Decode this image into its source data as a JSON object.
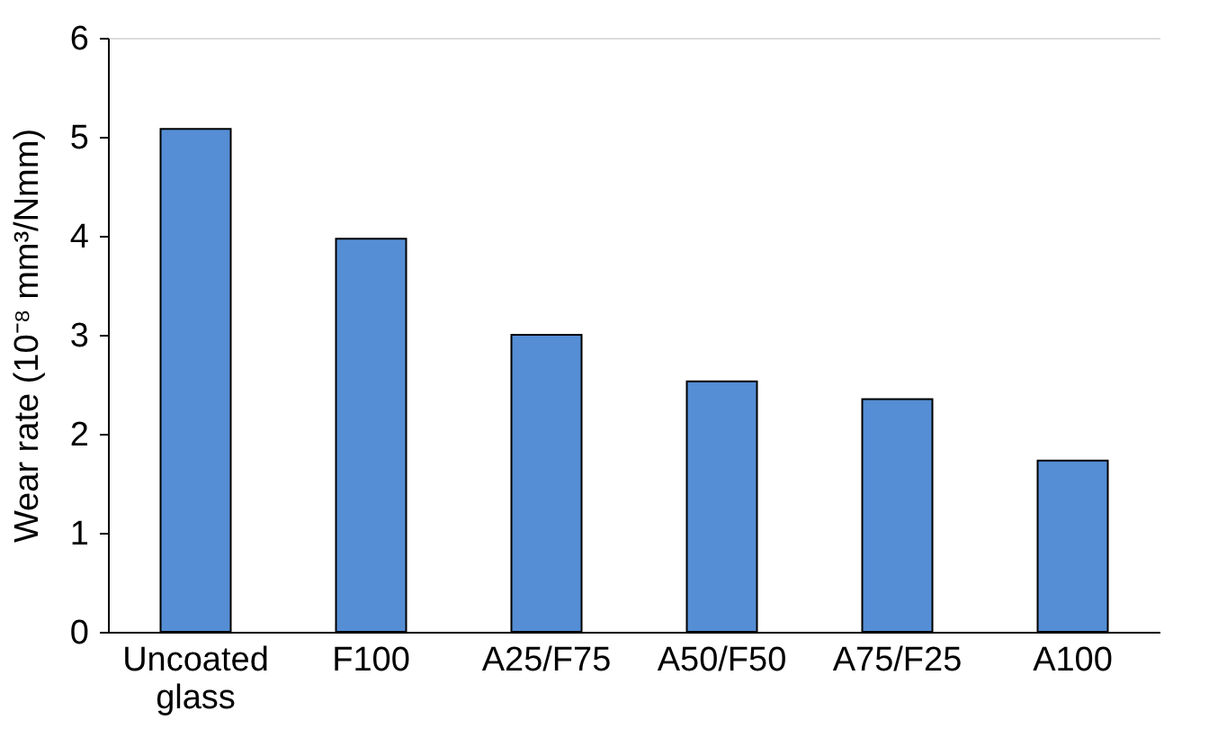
{
  "chart_data": {
    "type": "bar",
    "ylabel": "Wear rate (10⁻⁸ mm³/Nmm)",
    "categories": [
      "Uncoated glass",
      "F100",
      "A25/F75",
      "A50/F50",
      "A75/F25",
      "A100"
    ],
    "values": [
      5.08,
      3.97,
      3.0,
      2.53,
      2.35,
      1.73
    ],
    "color": "#558ed5",
    "ylim": [
      0,
      6
    ],
    "yticks": [
      0,
      1,
      2,
      3,
      4,
      5,
      6
    ],
    "grid": false
  }
}
